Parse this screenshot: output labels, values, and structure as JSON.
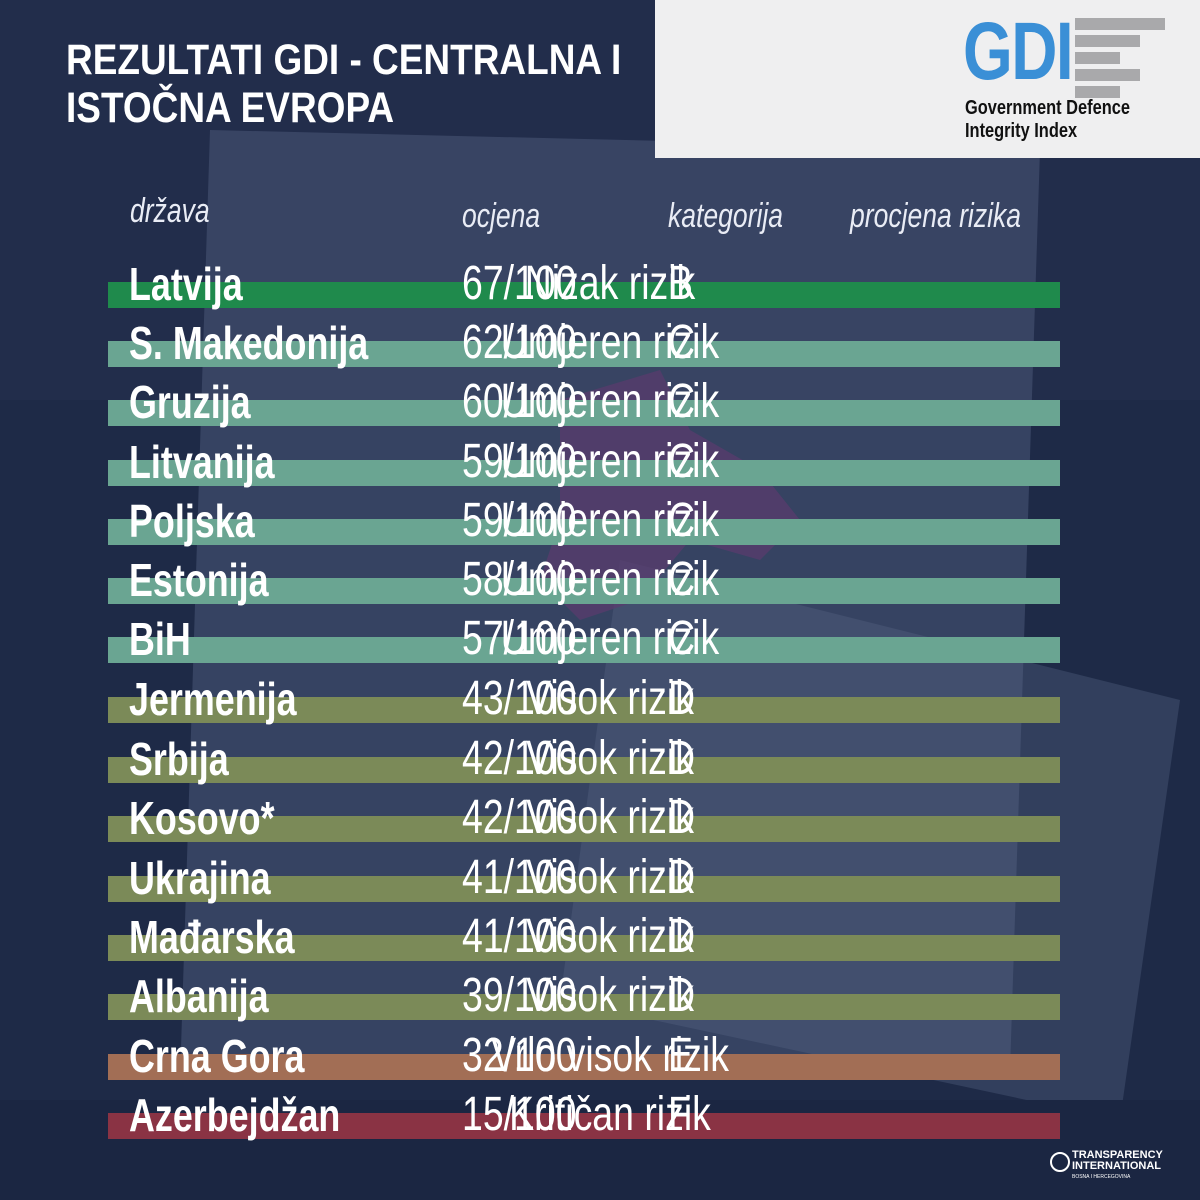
{
  "title_lines": [
    "REZULTATI GDI - CENTRALNA I",
    "ISTOČNA EVROPA"
  ],
  "logo": {
    "mark": "GDI",
    "line1": "Government Defence",
    "line2": "Integrity Index"
  },
  "headers": {
    "country": "država",
    "score": "ocjena",
    "category": "kategorija",
    "risk": "procjena rizika"
  },
  "colors": {
    "low": "#1f8a4c",
    "moderate": "#6aa592",
    "high": "#7b8a58",
    "very_high": "#a26e55",
    "critical": "#8a3344",
    "background": "#1e2a47"
  },
  "rows": [
    {
      "country": "Latvija",
      "score": "67/100",
      "category": "B",
      "risk": "Nizak rizik",
      "level": "low"
    },
    {
      "country": "S. Makedonija",
      "score": "62/100",
      "category": "C",
      "risk": "Umjeren rizik",
      "level": "moderate"
    },
    {
      "country": "Gruzija",
      "score": "60/100",
      "category": "C",
      "risk": "Umjeren rizik",
      "level": "moderate"
    },
    {
      "country": "Litvanija",
      "score": "59/100",
      "category": "C",
      "risk": "Umjeren rizik",
      "level": "moderate"
    },
    {
      "country": "Poljska",
      "score": "59/100",
      "category": "C",
      "risk": "Umjeren rizik",
      "level": "moderate"
    },
    {
      "country": "Estonija",
      "score": "58/100",
      "category": "C",
      "risk": "Umjeren rizik",
      "level": "moderate"
    },
    {
      "country": "BiH",
      "score": "57/100",
      "category": "C",
      "risk": "Umjeren rizik",
      "level": "moderate"
    },
    {
      "country": "Jermenija",
      "score": "43/100",
      "category": "D",
      "risk": "Visok rizik",
      "level": "high"
    },
    {
      "country": "Srbija",
      "score": "42/100",
      "category": "D",
      "risk": "Visok rizik",
      "level": "high"
    },
    {
      "country": "Kosovo*",
      "score": "42/100",
      "category": "D",
      "risk": "Visok rizik",
      "level": "high"
    },
    {
      "country": "Ukrajina",
      "score": "41/100",
      "category": "D",
      "risk": "Visok rizik",
      "level": "high"
    },
    {
      "country": "Mađarska",
      "score": "41/100",
      "category": "D",
      "risk": "Visok rizik",
      "level": "high"
    },
    {
      "country": "Albanija",
      "score": "39/100",
      "category": "D",
      "risk": "Visok rizik",
      "level": "high"
    },
    {
      "country": "Crna Gora",
      "score": "32/100",
      "category": "E",
      "risk": "Vrlo visok rizik",
      "level": "very_high"
    },
    {
      "country": "Azerbejdžan",
      "score": "15/100",
      "category": "F",
      "risk": "Kritičan rizik",
      "level": "critical"
    }
  ],
  "footer": {
    "line1": "TRANSPARENCY",
    "line2": "INTERNATIONAL",
    "line3": "BOSNA I HERCEGOVINA"
  }
}
